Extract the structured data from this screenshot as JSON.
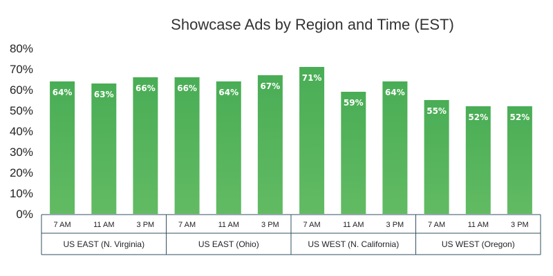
{
  "chart_data": {
    "type": "bar",
    "title": "Showcase Ads by Region and Time (EST)",
    "xlabel": "",
    "ylabel": "",
    "ylim": [
      0,
      80
    ],
    "yticks": [
      "0%",
      "10%",
      "20%",
      "30%",
      "40%",
      "50%",
      "60%",
      "70%",
      "80%"
    ],
    "grid": false,
    "legend": "none",
    "bar_color_top": "#49ad55",
    "bar_color_bottom": "#62bb63",
    "groups": [
      {
        "name": "US EAST (N. Virginia)",
        "categories": [
          "7 AM",
          "11 AM",
          "3 PM"
        ],
        "values": [
          64,
          63,
          66
        ],
        "labels": [
          "64%",
          "63%",
          "66%"
        ]
      },
      {
        "name": "US EAST (Ohio)",
        "categories": [
          "7 AM",
          "11 AM",
          "3 PM"
        ],
        "values": [
          66,
          64,
          67
        ],
        "labels": [
          "66%",
          "64%",
          "67%"
        ]
      },
      {
        "name": "US WEST (N. California)",
        "categories": [
          "7 AM",
          "11 AM",
          "3 PM"
        ],
        "values": [
          71,
          59,
          64
        ],
        "labels": [
          "71%",
          "59%",
          "64%"
        ]
      },
      {
        "name": "US WEST (Oregon)",
        "categories": [
          "7 AM",
          "11 AM",
          "3 PM"
        ],
        "values": [
          55,
          52,
          52
        ],
        "labels": [
          "55%",
          "52%",
          "52%"
        ]
      }
    ]
  }
}
